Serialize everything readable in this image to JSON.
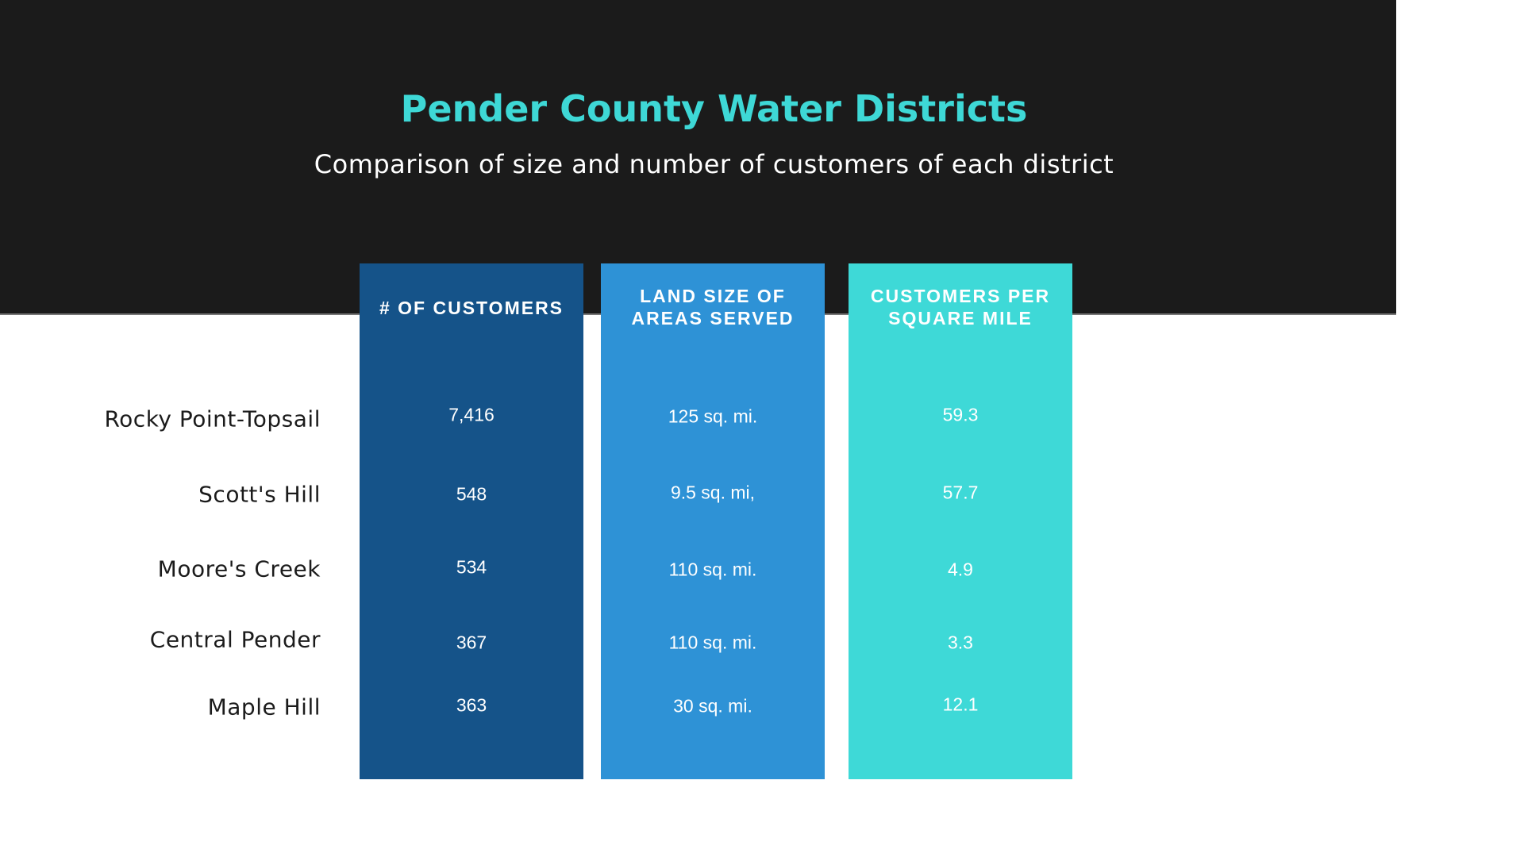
{
  "title": "Pender County Water Districts",
  "subtitle": "Comparison of size and number of customers of each district",
  "columns": [
    {
      "header": "# OF CUSTOMERS",
      "color": "#155389",
      "values": [
        "7,416",
        "548",
        "534",
        "367",
        "363"
      ]
    },
    {
      "header_line1": "LAND SIZE OF",
      "header_line2": "AREAS SERVED",
      "color": "#2e92d6",
      "values": [
        "125 sq. mi.",
        "9.5 sq. mi,",
        "110 sq. mi.",
        "110 sq. mi.",
        "30 sq. mi."
      ]
    },
    {
      "header_line1": "CUSTOMERS PER",
      "header_line2": "SQUARE MILE",
      "color": "#3ed9d7",
      "values": [
        "59.3",
        "57.7",
        "4.9",
        "3.3",
        "12.1"
      ]
    }
  ],
  "districts": [
    "Rocky Point-Topsail",
    "Scott's Hill",
    "Moore's Creek",
    "Central Pender",
    "Maple Hill"
  ]
}
